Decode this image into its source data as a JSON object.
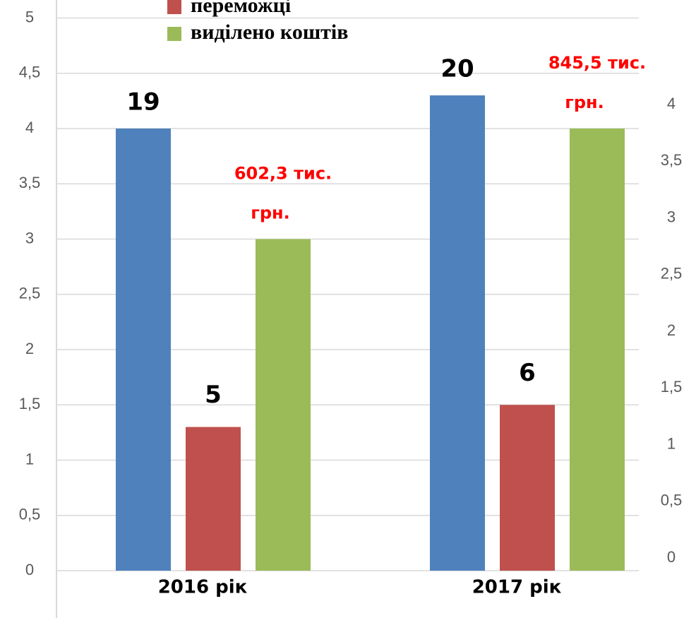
{
  "chart_data": {
    "type": "bar",
    "categories": [
      "2016 рік",
      "2017 рік"
    ],
    "series": [
      {
        "name": null,
        "color": "#4f81bd",
        "values": [
          4,
          4.3
        ],
        "labels": [
          [
            "19"
          ],
          [
            "20"
          ]
        ],
        "label_color": "#000000"
      },
      {
        "name": "переможці",
        "color": "#c0504d",
        "values": [
          1.3,
          1.5
        ],
        "labels": [
          [
            "5"
          ],
          [
            "6"
          ]
        ],
        "label_color": "#000000"
      },
      {
        "name": "виділено коштів",
        "color": "#9bbb59",
        "values": [
          3,
          4
        ],
        "labels": [
          [
            "602,3 тис.",
            "грн."
          ],
          [
            "845,5 тис.",
            "грн."
          ]
        ],
        "label_color": "#ff0000"
      }
    ],
    "ylim": [
      0,
      5
    ],
    "yticks": [
      0,
      {
        "value": 0.5,
        "label": "0,5"
      },
      1,
      {
        "value": 1.5,
        "label": "1,5"
      },
      2,
      {
        "value": 2.5,
        "label": "2,5"
      },
      3,
      {
        "value": 3.5,
        "label": "3,5"
      },
      4,
      {
        "value": 4.5,
        "label": "4,5"
      },
      5
    ],
    "y2lim": [
      0,
      4
    ],
    "y2ticks": [
      0,
      {
        "value": 0.5,
        "label": "0,5"
      },
      1,
      {
        "value": 1.5,
        "label": "1,5"
      },
      2,
      {
        "value": 2.5,
        "label": "2,5"
      },
      3,
      {
        "value": 3.5,
        "label": "3,5"
      },
      4
    ],
    "grid": true
  }
}
